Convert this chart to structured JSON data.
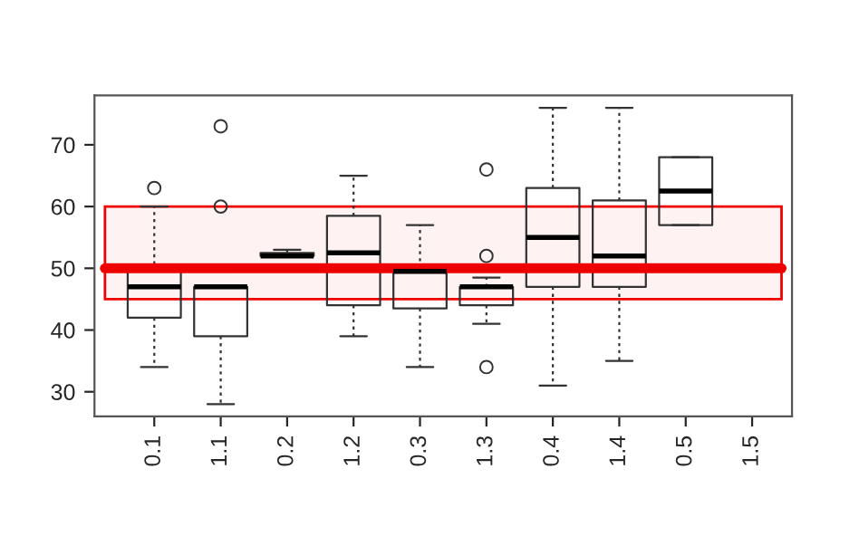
{
  "chart_data": {
    "type": "box",
    "categories": [
      "0.1",
      "1.1",
      "0.2",
      "1.2",
      "0.3",
      "1.3",
      "0.4",
      "1.4",
      "0.5",
      "1.5"
    ],
    "boxes": [
      {
        "low": 34,
        "q1": 42,
        "median": 47,
        "q3": 49.5,
        "high": 60,
        "outliers": [
          63
        ]
      },
      {
        "low": 28,
        "q1": 39,
        "median": 47,
        "q3": 47,
        "high": 47,
        "outliers": [
          60,
          73
        ]
      },
      {
        "low": 52,
        "q1": 52,
        "median": 52,
        "q3": 52.5,
        "high": 53
      },
      {
        "low": 39,
        "q1": 44,
        "median": 52.5,
        "q3": 58.5,
        "high": 65
      },
      {
        "low": 34,
        "q1": 43.5,
        "median": 49.5,
        "q3": 50,
        "high": 57
      },
      {
        "low": 41,
        "q1": 44,
        "median": 47,
        "q3": 47,
        "high": 48.5,
        "outliers": [
          34,
          52,
          66
        ]
      },
      {
        "low": 31,
        "q1": 47,
        "median": 55,
        "q3": 63,
        "high": 76
      },
      {
        "low": 35,
        "q1": 47,
        "median": 52,
        "q3": 61,
        "high": 76
      },
      {
        "low": 57,
        "q1": 57,
        "median": 62.5,
        "q3": 68,
        "high": 68
      },
      null
    ],
    "ylim": [
      26,
      78
    ],
    "yticks": [
      30,
      40,
      50,
      60,
      70
    ],
    "ref_lines": [
      {
        "axis": "y",
        "value": 50,
        "color": "#ee0000"
      }
    ],
    "bands": [
      {
        "axis": "y",
        "from": 45,
        "to": 60,
        "color": "#ee0000"
      }
    ],
    "grid": false,
    "legend": false
  }
}
